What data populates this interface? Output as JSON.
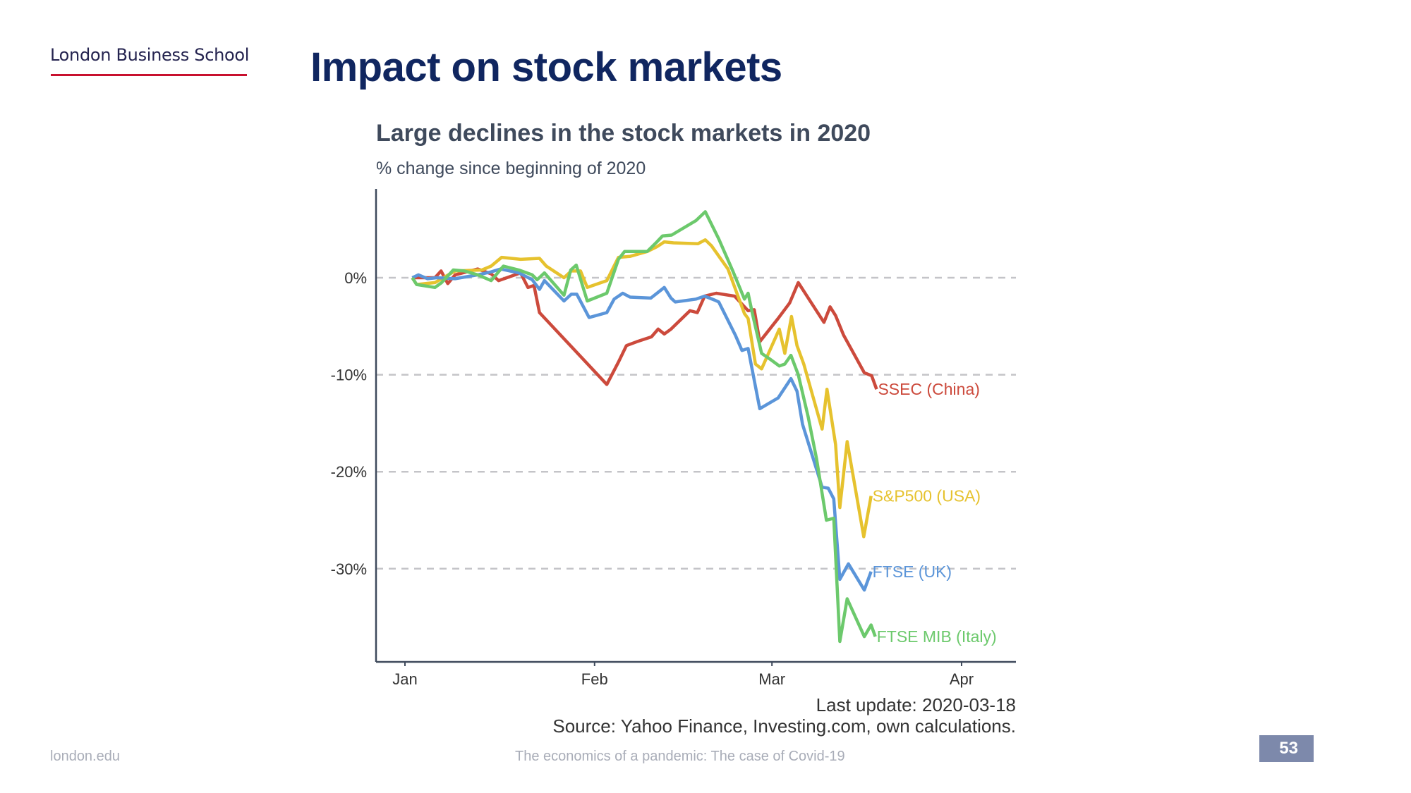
{
  "header": {
    "logo_text": "London Business School",
    "title": "Impact on stock markets"
  },
  "footer": {
    "website": "london.edu",
    "presentation_title": "The economics of a pandemic: The case of Covid-19",
    "page_number": "53"
  },
  "chart_data": {
    "type": "line",
    "title": "Large declines in the stock markets in 2020",
    "subtitle": "% change since beginning of 2020",
    "xlabel": "",
    "ylabel": "% change",
    "x_unit": "day of year 2020",
    "xlim": [
      -3,
      100
    ],
    "ylim": [
      -39.5,
      9
    ],
    "x_ticks": [
      {
        "label": "Jan",
        "day": 1
      },
      {
        "label": "Feb",
        "day": 32
      },
      {
        "label": "Mar",
        "day": 61
      },
      {
        "label": "Apr",
        "day": 92
      }
    ],
    "y_ticks": [
      {
        "label": "0%",
        "value": 0
      },
      {
        "label": "-10%",
        "value": -10
      },
      {
        "label": "-20%",
        "value": -20
      },
      {
        "label": "-30%",
        "value": -30
      }
    ],
    "grid": "horizontal dashed",
    "notes": [
      "Last update: 2020-03-18",
      "Source: Yahoo Finance, Investing.com, own calculations."
    ],
    "series": [
      {
        "name": "SSEC (China)",
        "color": "#cc4a3c",
        "x": [
          2.2,
          5.9,
          6.9,
          8.0,
          9.2,
          12.9,
          15.1,
          16.3,
          19.9,
          21.1,
          22.1,
          23.0,
          34.0,
          35.9,
          37.2,
          38.9,
          41.3,
          42.4,
          43.4,
          44.5,
          47.6,
          48.8,
          50.0,
          51.9,
          54.9,
          56.5,
          57.1,
          58.1,
          59.0,
          62.0,
          63.9,
          65.3,
          69.5,
          70.5,
          71.4,
          72.7,
          76.1,
          77.3,
          78.1
        ],
        "y": [
          0,
          0,
          0.7,
          -0.6,
          0.3,
          0.9,
          0.4,
          -0.3,
          0.5,
          -1,
          -0.8,
          -3.6,
          -11,
          -8.7,
          -7,
          -6.6,
          -6.1,
          -5.3,
          -5.8,
          -5.3,
          -3.4,
          -3.6,
          -1.9,
          -1.6,
          -1.9,
          -3.0,
          -3.4,
          -3.3,
          -6.6,
          -4.2,
          -2.6,
          -0.5,
          -4.6,
          -3.0,
          -3.9,
          -5.9,
          -9.8,
          -10.1,
          -11.5
        ]
      },
      {
        "name": "S&P500 (USA)",
        "color": "#e6c22e",
        "x": [
          2.2,
          2.9,
          5.9,
          9.2,
          13.6,
          15.1,
          16.8,
          19.9,
          23.0,
          24.1,
          27.0,
          28.2,
          29.7,
          30.8,
          34.0,
          35.9,
          37.8,
          40.6,
          42.2,
          43.4,
          44.9,
          48.9,
          50.1,
          51.1,
          53.8,
          56.5,
          57.1,
          58.3,
          59.3,
          62.2,
          63.1,
          64.2,
          65.1,
          66.2,
          69.2,
          70.0,
          71.4,
          72.1,
          73.3,
          76.0,
          77.2
        ],
        "y": [
          0,
          -0.7,
          -0.5,
          0.7,
          0.8,
          1.2,
          2.1,
          1.9,
          2.0,
          1.2,
          0,
          0.7,
          0.7,
          -1,
          -0.3,
          2.1,
          2.2,
          2.7,
          3.2,
          3.7,
          3.6,
          3.5,
          3.9,
          3.3,
          0.9,
          -3.7,
          -4.2,
          -8.9,
          -9.4,
          -5.3,
          -7.8,
          -4.0,
          -7.0,
          -8.9,
          -15.6,
          -11.5,
          -17.2,
          -23.7,
          -16.9,
          -26.7,
          -22.5
        ]
      },
      {
        "name": "FTSE (UK)",
        "color": "#5b95d9",
        "x": [
          2.2,
          3.2,
          4.7,
          6.2,
          9.2,
          12.9,
          15.1,
          16.6,
          19.6,
          21.8,
          23.0,
          23.8,
          27.0,
          28.2,
          29.1,
          31.1,
          34.0,
          35.2,
          36.6,
          37.8,
          41.2,
          43.4,
          44.5,
          45.2,
          48.6,
          50.0,
          51.6,
          52.3,
          55.0,
          56.1,
          57.1,
          59.0,
          62.0,
          64.1,
          65.1,
          66.0,
          69.2,
          70.2,
          71.1,
          72.1,
          73.5,
          76.1,
          77.2
        ],
        "y": [
          0,
          0.3,
          -0.1,
          0,
          -0.1,
          0.3,
          0.6,
          0.9,
          0.5,
          -0.2,
          -1.2,
          -0.3,
          -2.4,
          -1.7,
          -1.7,
          -4.1,
          -3.6,
          -2.2,
          -1.6,
          -2.0,
          -2.1,
          -1.0,
          -2.1,
          -2.5,
          -2.2,
          -1.9,
          -2.3,
          -2.5,
          -5.9,
          -7.5,
          -7.3,
          -13.5,
          -12.4,
          -10.4,
          -11.7,
          -15.1,
          -21.6,
          -21.7,
          -22.8,
          -31.1,
          -29.5,
          -32.2,
          -30.3
        ]
      },
      {
        "name": "FTSE MIB (Italy)",
        "color": "#6cc96c",
        "x": [
          2.2,
          2.9,
          5.9,
          7.0,
          8.9,
          10.7,
          12.9,
          15.1,
          17.1,
          19.6,
          21.8,
          22.6,
          23.8,
          27.0,
          28.1,
          29.0,
          30.8,
          34.0,
          35.9,
          36.9,
          40.6,
          42.2,
          43.1,
          44.6,
          48.6,
          50.1,
          52.3,
          54.6,
          56.5,
          57.1,
          57.8,
          59.3,
          60.7,
          62.2,
          63.1,
          64.1,
          65.3,
          66.9,
          68.3,
          69.9,
          71.1,
          72.1,
          73.3,
          76.1,
          77.2,
          77.9
        ],
        "y": [
          0,
          -0.7,
          -1.0,
          -0.5,
          0.8,
          0.7,
          0.3,
          -0.3,
          1.2,
          0.8,
          0.3,
          -0.2,
          0.5,
          -1.8,
          0.8,
          1.3,
          -2.4,
          -1.6,
          1.9,
          2.7,
          2.7,
          3.7,
          4.3,
          4.4,
          5.9,
          6.8,
          4.0,
          0.7,
          -2.2,
          -1.6,
          -3.7,
          -7.8,
          -8.4,
          -9.1,
          -8.9,
          -8.0,
          -10.0,
          -14.3,
          -18.7,
          -25.0,
          -24.8,
          -37.5,
          -33.1,
          -37.0,
          -35.8,
          -37.0
        ]
      }
    ]
  }
}
